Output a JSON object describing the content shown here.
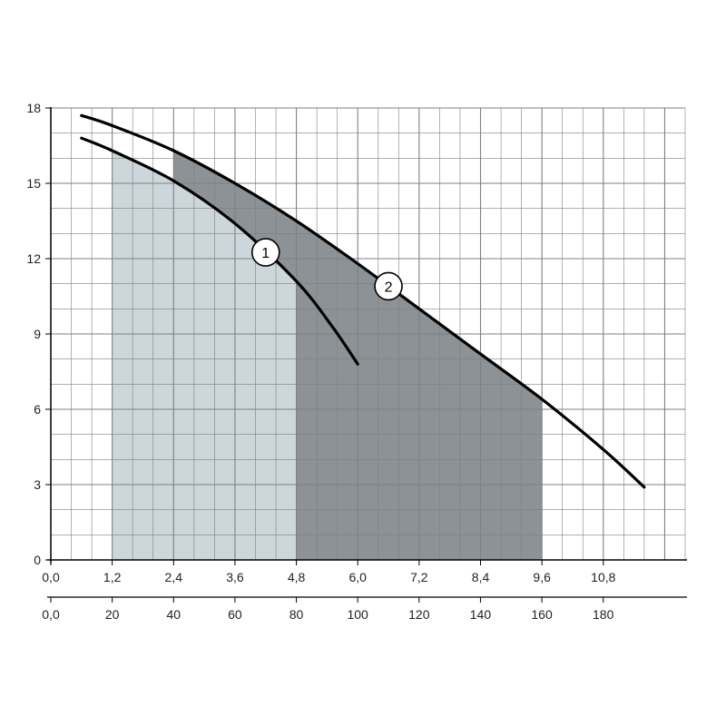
{
  "chart_data": {
    "type": "line",
    "title": "",
    "ylim": [
      0,
      18
    ],
    "y_ticks": [
      "0",
      "3",
      "6",
      "9",
      "12",
      "15",
      "18"
    ],
    "x_axes": [
      {
        "xlim": [
          0,
          12.4
        ],
        "ticks": [
          "0,0",
          "1,2",
          "2,4",
          "3,6",
          "4,8",
          "6,0",
          "7,2",
          "8,4",
          "9,6",
          "10,8"
        ],
        "tick_values": [
          0,
          1.2,
          2.4,
          3.6,
          4.8,
          6.0,
          7.2,
          8.4,
          9.6,
          10.8
        ]
      },
      {
        "xlim": [
          0,
          206.7
        ],
        "ticks": [
          "0,0",
          "20",
          "40",
          "60",
          "80",
          "100",
          "120",
          "140",
          "160",
          "180"
        ],
        "tick_values": [
          0,
          20,
          40,
          60,
          80,
          100,
          120,
          140,
          160,
          180
        ]
      }
    ],
    "grid": true,
    "series": [
      {
        "name": "1",
        "x": [
          0.6,
          1.2,
          2.4,
          3.6,
          4.8,
          5.5,
          6.0
        ],
        "y": [
          16.8,
          16.3,
          15.1,
          13.4,
          11.1,
          9.3,
          7.8
        ]
      },
      {
        "name": "2",
        "x": [
          0.6,
          1.2,
          2.4,
          3.6,
          4.8,
          6.0,
          7.2,
          8.4,
          9.6,
          10.8,
          11.6
        ],
        "y": [
          17.7,
          17.3,
          16.3,
          15.0,
          13.5,
          11.8,
          10.0,
          8.2,
          6.4,
          4.4,
          2.9
        ]
      }
    ],
    "regions": [
      {
        "series": "1",
        "x_range": [
          1.2,
          4.8
        ],
        "color": "#cdd6da"
      },
      {
        "series": "2",
        "x_range": [
          2.4,
          9.6
        ],
        "color": "#8c9296"
      }
    ],
    "colors": {
      "line": "#000000",
      "grid": "#808080",
      "axis": "#000000"
    }
  }
}
